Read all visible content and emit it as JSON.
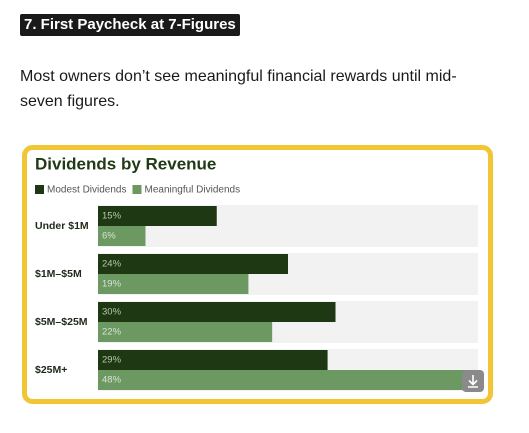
{
  "heading": "7. First Paycheck at 7-Figures",
  "text": "Most owners don’t see meaningful financial rewards until mid-seven figures.",
  "chart_data": {
    "type": "barh",
    "title": "Dividends by Revenue",
    "categories": [
      "Under $1M",
      "$1M–$5M",
      "$5M–$25M",
      "$25M+"
    ],
    "series": [
      {
        "name": "Modest Dividends",
        "color": "#1d3812",
        "values": [
          15,
          24,
          30,
          29
        ],
        "value_labels": [
          "15%",
          "24%",
          "30%",
          "29%"
        ]
      },
      {
        "name": "Meaningful Dividends",
        "color": "#6c9862",
        "values": [
          6,
          19,
          22,
          48
        ],
        "value_labels": [
          "6%",
          "19%",
          "22%",
          "48%"
        ]
      }
    ],
    "xlim": [
      0,
      48
    ]
  }
}
